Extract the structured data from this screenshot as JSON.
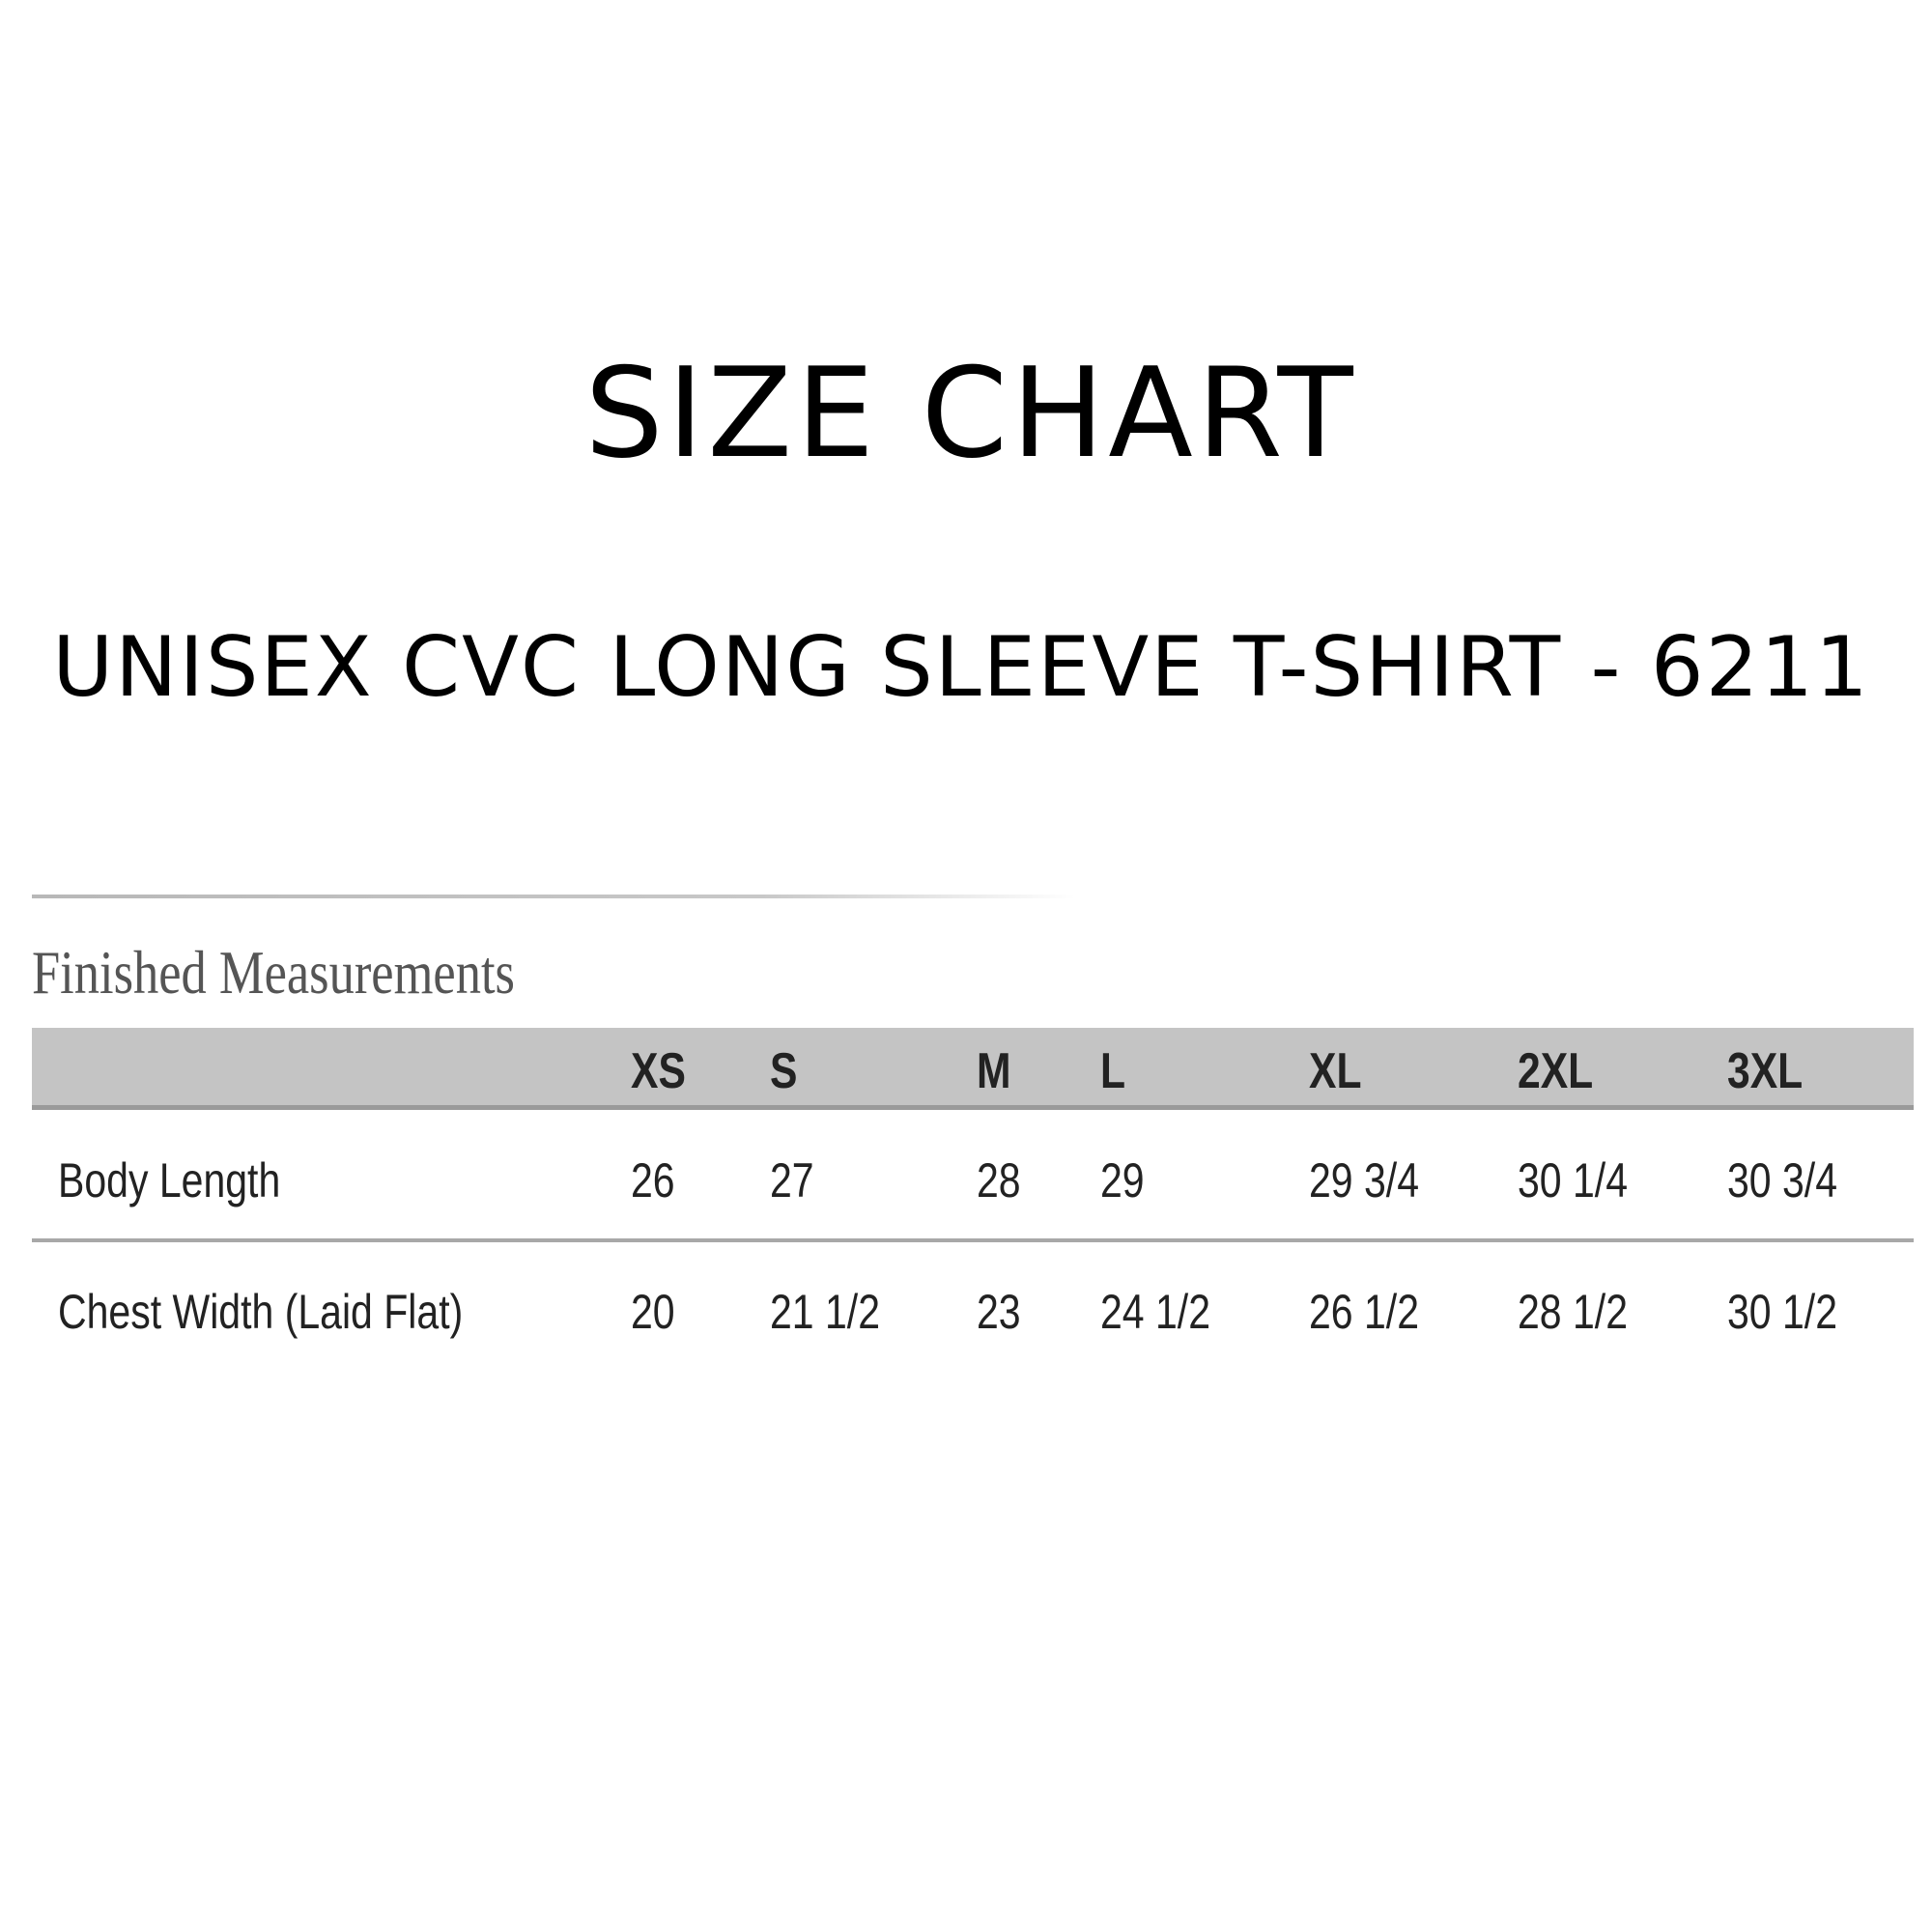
{
  "title": "SIZE CHART",
  "subtitle": "UNISEX CVC LONG SLEEVE T-SHIRT - 6211",
  "section_title": "Finished Measurements",
  "table": {
    "columns": [
      "XS",
      "S",
      "M",
      "L",
      "XL",
      "2XL",
      "3XL"
    ],
    "rows": [
      {
        "label": "Body Length",
        "values": [
          "26",
          "27",
          "28",
          "29",
          "29 3/4",
          "30 1/4",
          "30 3/4"
        ]
      },
      {
        "label": "Chest Width (Laid Flat)",
        "values": [
          "20",
          "21 1/2",
          "23",
          "24 1/2",
          "26 1/2",
          "28 1/2",
          "30 1/2"
        ]
      }
    ]
  },
  "colors": {
    "header_bg": "#c4c4c4",
    "text": "#222222",
    "section_text": "#555555"
  }
}
